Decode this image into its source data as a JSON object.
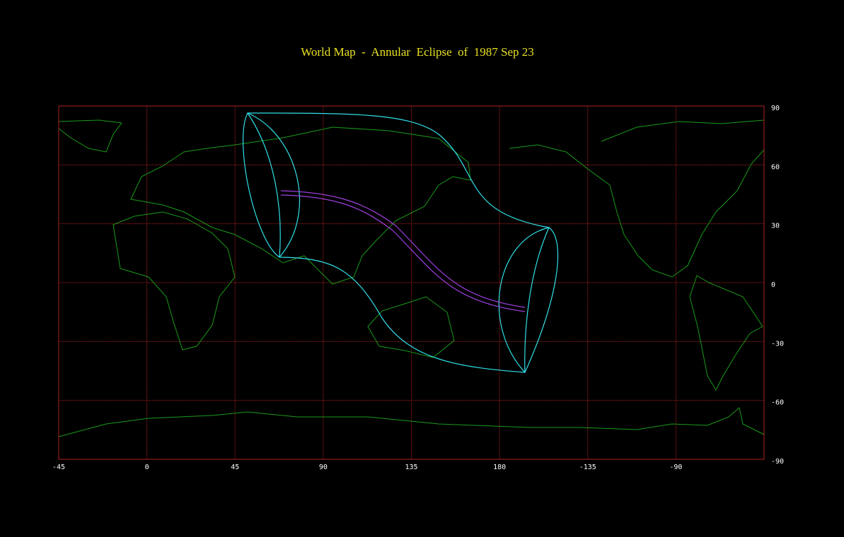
{
  "map": {
    "title": "World Map  -  Annular  Eclipse  of  1987 Sep 23",
    "xlim": [
      -45,
      315
    ],
    "xticks": [
      -45,
      0,
      45,
      90,
      135,
      180,
      {
        "value": 225,
        "label": "-135"
      },
      {
        "value": 270,
        "label": "-90"
      }
    ],
    "ylim": [
      -90,
      90
    ],
    "yticks": [
      90,
      60,
      30,
      0,
      -30,
      -60,
      -90
    ],
    "grid": true
  }
}
